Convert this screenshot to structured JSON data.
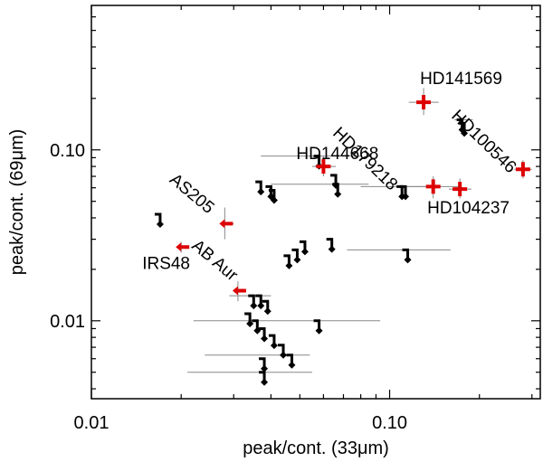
{
  "chart_data": {
    "type": "scatter",
    "xscale": "log",
    "yscale": "log",
    "xlim": [
      0.01,
      0.32
    ],
    "ylim": [
      0.0035,
      0.7
    ],
    "xlabel": "peak/cont. (33μm)",
    "ylabel": "peak/cont. (69μm)",
    "xtick_labels": [
      {
        "value": 0.01,
        "label": "0.01"
      },
      {
        "value": 0.1,
        "label": "0.10"
      }
    ],
    "ytick_labels": [
      {
        "value": 0.01,
        "label": "0.01"
      },
      {
        "value": 0.1,
        "label": "0.10"
      }
    ],
    "colors": {
      "detection": "#dd0000",
      "upper_limit": "#000000",
      "errorbar": "#888888"
    },
    "detections": [
      {
        "name": "HD141569",
        "x": 0.13,
        "y": 0.19,
        "xerr": [
          0.116,
          0.146
        ],
        "yerr": [
          0.16,
          0.23
        ]
      },
      {
        "name": "HD100546",
        "x": 0.28,
        "y": 0.077,
        "xerr": [
          0.262,
          0.3
        ],
        "yerr": [
          0.068,
          0.087
        ]
      },
      {
        "name": "HD179218",
        "x": 0.14,
        "y": 0.061,
        "xerr": [
          0.115,
          0.172
        ],
        "yerr": [
          0.052,
          0.07
        ]
      },
      {
        "name": "HD104237",
        "x": 0.172,
        "y": 0.059,
        "xerr": [
          0.158,
          0.188
        ],
        "yerr": [
          0.052,
          0.068
        ]
      },
      {
        "name": "HD144668",
        "x": 0.06,
        "y": 0.08,
        "xerr": [
          0.055,
          0.066
        ],
        "yerr": [
          0.07,
          0.092
        ]
      },
      {
        "name": "AS205",
        "x": 0.028,
        "y": 0.037,
        "xerr": [
          0.028,
          0.03
        ],
        "yerr": [
          0.03,
          0.046
        ]
      },
      {
        "name": "IRS48",
        "x": 0.02,
        "y": 0.027,
        "xerr": [
          0.02,
          0.021
        ],
        "yerr": [
          0.025,
          0.029
        ]
      },
      {
        "name": "AB Aur",
        "x": 0.031,
        "y": 0.015,
        "xerr": [
          0.031,
          0.033
        ],
        "yerr": [
          0.013,
          0.017
        ]
      }
    ],
    "upper_limits": [
      {
        "x": 0.017,
        "y": 0.042
      },
      {
        "x": 0.037,
        "y": 0.065
      },
      {
        "x": 0.04,
        "y": 0.061
      },
      {
        "x": 0.041,
        "y": 0.058
      },
      {
        "x": 0.058,
        "y": 0.092,
        "xerr": [
          0.037,
          0.08
        ]
      },
      {
        "x": 0.066,
        "y": 0.071
      },
      {
        "x": 0.067,
        "y": 0.063,
        "xerr": [
          0.04,
          0.085
        ]
      },
      {
        "x": 0.11,
        "y": 0.061,
        "xerr": [
          0.08,
          0.145
        ]
      },
      {
        "x": 0.113,
        "y": 0.061
      },
      {
        "x": 0.175,
        "y": 0.15,
        "xerr": [
          0.165,
          0.19
        ]
      },
      {
        "x": 0.178,
        "y": 0.143
      },
      {
        "x": 0.052,
        "y": 0.029
      },
      {
        "x": 0.049,
        "y": 0.026
      },
      {
        "x": 0.046,
        "y": 0.024
      },
      {
        "x": 0.064,
        "y": 0.03
      },
      {
        "x": 0.115,
        "y": 0.026,
        "xerr": [
          0.072,
          0.16
        ]
      },
      {
        "x": 0.035,
        "y": 0.014
      },
      {
        "x": 0.037,
        "y": 0.014,
        "xerr": [
          0.029,
          0.04
        ]
      },
      {
        "x": 0.039,
        "y": 0.013
      },
      {
        "x": 0.034,
        "y": 0.011
      },
      {
        "x": 0.036,
        "y": 0.01,
        "xerr": [
          0.022,
          0.093
        ]
      },
      {
        "x": 0.038,
        "y": 0.009
      },
      {
        "x": 0.058,
        "y": 0.01
      },
      {
        "x": 0.041,
        "y": 0.0082
      },
      {
        "x": 0.044,
        "y": 0.0072
      },
      {
        "x": 0.047,
        "y": 0.0063,
        "xerr": [
          0.024,
          0.054
        ]
      },
      {
        "x": 0.038,
        "y": 0.006
      },
      {
        "x": 0.038,
        "y": 0.005,
        "xerr": [
          0.021,
          0.055
        ]
      }
    ]
  }
}
